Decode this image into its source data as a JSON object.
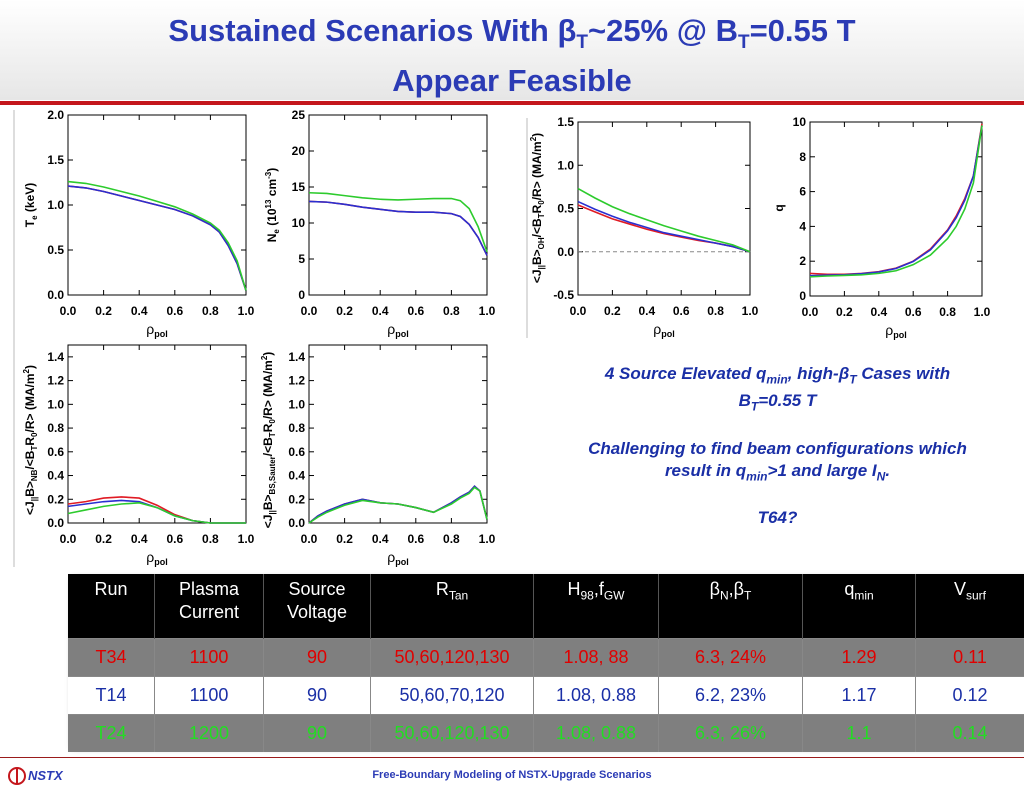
{
  "header": {
    "title_line1_a": "Sustained Scenarios With ",
    "beta": "β",
    "sub_T1": "T",
    "title_line1_b": "~25% @ B",
    "sub_T2": "T",
    "title_line1_c": "=0.55 T",
    "title_line2": "Appear Feasible"
  },
  "colors": {
    "red": "#e01b24",
    "blue": "#2a2fd0",
    "green": "#2dcb2d",
    "title": "#2b3bb5"
  },
  "chart_data": [
    {
      "type": "line",
      "id": "te",
      "ylabel": "T_e (keV)",
      "xlabel": "ρ_pol",
      "xlim": [
        0,
        1
      ],
      "ylim": [
        0,
        2
      ],
      "xticks": [
        "0.0",
        "0.2",
        "0.4",
        "0.6",
        "0.8",
        "1.0"
      ],
      "yticks": [
        "0.0",
        "0.5",
        "1.0",
        "1.5",
        "2.0"
      ],
      "x": [
        0,
        0.1,
        0.2,
        0.3,
        0.4,
        0.5,
        0.6,
        0.7,
        0.8,
        0.85,
        0.9,
        0.95,
        1.0
      ],
      "series": [
        {
          "color": "red",
          "values": [
            1.21,
            1.19,
            1.15,
            1.1,
            1.05,
            1.0,
            0.95,
            0.88,
            0.78,
            0.7,
            0.55,
            0.35,
            0.05
          ]
        },
        {
          "color": "blue",
          "values": [
            1.21,
            1.19,
            1.15,
            1.1,
            1.05,
            1.0,
            0.95,
            0.88,
            0.78,
            0.7,
            0.55,
            0.35,
            0.05
          ]
        },
        {
          "color": "green",
          "values": [
            1.26,
            1.24,
            1.2,
            1.15,
            1.1,
            1.04,
            0.98,
            0.9,
            0.8,
            0.72,
            0.58,
            0.38,
            0.05
          ]
        }
      ]
    },
    {
      "type": "line",
      "id": "ne",
      "ylabel": "N_e (10^13 cm^-3)",
      "xlabel": "ρ_pol",
      "xlim": [
        0,
        1
      ],
      "ylim": [
        0,
        25
      ],
      "xticks": [
        "0.0",
        "0.2",
        "0.4",
        "0.6",
        "0.8",
        "1.0"
      ],
      "yticks": [
        "0",
        "5",
        "10",
        "15",
        "20",
        "25"
      ],
      "x": [
        0,
        0.1,
        0.2,
        0.3,
        0.4,
        0.5,
        0.6,
        0.7,
        0.8,
        0.85,
        0.9,
        0.95,
        1.0
      ],
      "series": [
        {
          "color": "red",
          "values": [
            13.0,
            12.9,
            12.6,
            12.2,
            11.9,
            11.6,
            11.5,
            11.5,
            11.3,
            10.9,
            9.8,
            8.0,
            5.5
          ]
        },
        {
          "color": "blue",
          "values": [
            13.0,
            12.9,
            12.6,
            12.2,
            11.9,
            11.6,
            11.5,
            11.5,
            11.3,
            10.9,
            9.8,
            8.0,
            5.5
          ]
        },
        {
          "color": "green",
          "values": [
            14.2,
            14.1,
            13.8,
            13.5,
            13.3,
            13.2,
            13.3,
            13.4,
            13.4,
            13.1,
            12.0,
            9.5,
            6.0
          ]
        }
      ]
    },
    {
      "type": "line",
      "id": "joh",
      "ylabel": "<J_||B>_OH/<B_T R_0/R> (MA/m^2)",
      "xlabel": "ρ_pol",
      "xlim": [
        0,
        1
      ],
      "ylim": [
        -0.5,
        1.5
      ],
      "xticks": [
        "0.0",
        "0.2",
        "0.4",
        "0.6",
        "0.8",
        "1.0"
      ],
      "yticks": [
        "-0.5",
        "0.0",
        "0.5",
        "1.0",
        "1.5"
      ],
      "zero_line": true,
      "x": [
        0,
        0.1,
        0.2,
        0.3,
        0.4,
        0.5,
        0.6,
        0.7,
        0.8,
        0.9,
        1.0
      ],
      "series": [
        {
          "color": "red",
          "values": [
            0.54,
            0.46,
            0.38,
            0.32,
            0.26,
            0.21,
            0.17,
            0.13,
            0.1,
            0.06,
            0.0
          ]
        },
        {
          "color": "blue",
          "values": [
            0.58,
            0.49,
            0.41,
            0.34,
            0.28,
            0.22,
            0.18,
            0.14,
            0.1,
            0.06,
            0.0
          ]
        },
        {
          "color": "green",
          "values": [
            0.73,
            0.62,
            0.52,
            0.44,
            0.37,
            0.3,
            0.24,
            0.18,
            0.13,
            0.08,
            0.0
          ]
        }
      ]
    },
    {
      "type": "line",
      "id": "q",
      "ylabel": "q",
      "xlabel": "ρ_pol",
      "xlim": [
        0,
        1
      ],
      "ylim": [
        0,
        10
      ],
      "xticks": [
        "0.0",
        "0.2",
        "0.4",
        "0.6",
        "0.8",
        "1.0"
      ],
      "yticks": [
        "0",
        "2",
        "4",
        "6",
        "8",
        "10"
      ],
      "x": [
        0,
        0.1,
        0.2,
        0.3,
        0.4,
        0.5,
        0.6,
        0.7,
        0.8,
        0.85,
        0.9,
        0.95,
        1.0
      ],
      "series": [
        {
          "color": "red",
          "values": [
            1.3,
            1.25,
            1.25,
            1.3,
            1.4,
            1.6,
            2.0,
            2.7,
            3.8,
            4.6,
            5.6,
            6.9,
            9.9
          ]
        },
        {
          "color": "blue",
          "values": [
            1.17,
            1.2,
            1.22,
            1.28,
            1.38,
            1.58,
            1.98,
            2.65,
            3.75,
            4.5,
            5.5,
            6.9,
            9.8
          ]
        },
        {
          "color": "green",
          "values": [
            1.1,
            1.15,
            1.18,
            1.22,
            1.3,
            1.45,
            1.8,
            2.35,
            3.3,
            4.0,
            5.0,
            6.5,
            9.8
          ]
        }
      ]
    },
    {
      "type": "line",
      "id": "jnb",
      "ylabel": "<J_||B>_NB/<B_T R_0/R> (MA/m^2)",
      "xlabel": "ρ_pol",
      "xlim": [
        0,
        1
      ],
      "ylim": [
        0,
        1.5
      ],
      "xticks": [
        "0.0",
        "0.2",
        "0.4",
        "0.6",
        "0.8",
        "1.0"
      ],
      "yticks": [
        "0.0",
        "0.2",
        "0.4",
        "0.6",
        "0.8",
        "1.0",
        "1.2",
        "1.4"
      ],
      "x": [
        0,
        0.1,
        0.2,
        0.3,
        0.4,
        0.5,
        0.6,
        0.7,
        0.8,
        0.9,
        1.0
      ],
      "series": [
        {
          "color": "red",
          "values": [
            0.16,
            0.18,
            0.21,
            0.22,
            0.21,
            0.15,
            0.07,
            0.02,
            0.0,
            0.0,
            0.0
          ]
        },
        {
          "color": "blue",
          "values": [
            0.14,
            0.16,
            0.18,
            0.19,
            0.18,
            0.13,
            0.06,
            0.02,
            0.0,
            0.0,
            0.0
          ]
        },
        {
          "color": "green",
          "values": [
            0.08,
            0.11,
            0.14,
            0.16,
            0.17,
            0.13,
            0.06,
            0.02,
            0.0,
            0.0,
            0.0
          ]
        }
      ]
    },
    {
      "type": "line",
      "id": "jbs",
      "ylabel": "<J_||B>_BS,Sauter/<B_T R_0/R> (MA/m^2)",
      "xlabel": "ρ_pol",
      "xlim": [
        0,
        1
      ],
      "ylim": [
        0,
        1.5
      ],
      "xticks": [
        "0.0",
        "0.2",
        "0.4",
        "0.6",
        "0.8",
        "1.0"
      ],
      "yticks": [
        "0.0",
        "0.2",
        "0.4",
        "0.6",
        "0.8",
        "1.0",
        "1.2",
        "1.4"
      ],
      "x": [
        0,
        0.05,
        0.1,
        0.2,
        0.3,
        0.4,
        0.5,
        0.6,
        0.7,
        0.8,
        0.85,
        0.9,
        0.93,
        0.96,
        1.0
      ],
      "series": [
        {
          "color": "red",
          "values": [
            0.0,
            0.06,
            0.1,
            0.16,
            0.2,
            0.17,
            0.16,
            0.13,
            0.09,
            0.17,
            0.22,
            0.26,
            0.31,
            0.27,
            0.03
          ]
        },
        {
          "color": "blue",
          "values": [
            0.0,
            0.06,
            0.1,
            0.16,
            0.2,
            0.17,
            0.16,
            0.13,
            0.09,
            0.17,
            0.22,
            0.26,
            0.31,
            0.27,
            0.03
          ]
        },
        {
          "color": "green",
          "values": [
            0.0,
            0.05,
            0.09,
            0.15,
            0.19,
            0.17,
            0.16,
            0.13,
            0.09,
            0.16,
            0.21,
            0.25,
            0.3,
            0.27,
            0.03
          ]
        }
      ]
    }
  ],
  "caption": {
    "line1_a": "4 Source Elevated q",
    "line1_min": "min",
    "line1_b": ", high-",
    "line1_beta": "β",
    "line1_T": "T",
    "line1_c": " Cases with",
    "line2_a": "B",
    "line2_T": "T",
    "line2_b": "=0.55 T",
    "line3": "Challenging to find beam configurations which",
    "line4_a": "result in q",
    "line4_min": "min",
    "line4_b": ">1 and large I",
    "line4_N": "N",
    "line4_c": ".",
    "line5": "T64?"
  },
  "table": {
    "headers": {
      "run": "Run",
      "plasma1": "Plasma",
      "plasma2": "Current",
      "source1": "Source",
      "source2": "Voltage",
      "rtan": "R",
      "rtan_sub": "Tan",
      "h98": "H",
      "h98_sub": "98",
      "fgw_sep": ",f",
      "fgw_sub": "GW",
      "beta1": "β",
      "beta_n": "N",
      "beta_sep": ",β",
      "beta_t": "T",
      "qmin": "q",
      "qmin_sub": "min",
      "vsurf": "V",
      "vsurf_sub": "surf"
    },
    "rows": [
      {
        "run": "T34",
        "current": "1100",
        "voltage": "90",
        "rtan": "50,60,120,130",
        "h98fgw": "1.08, 88",
        "beta": "6.3, 24%",
        "qmin": "1.29",
        "vsurf": "0.11"
      },
      {
        "run": "T14",
        "current": "1100",
        "voltage": "90",
        "rtan": "50,60,70,120",
        "h98fgw": "1.08, 0.88",
        "beta": "6.2, 23%",
        "qmin": "1.17",
        "vsurf": "0.12"
      },
      {
        "run": "T24",
        "current": "1200",
        "voltage": "90",
        "rtan": "50,60,120,130",
        "h98fgw": "1.08, 0.88",
        "beta": "6.3, 26%",
        "qmin": "1.1",
        "vsurf": "0.14"
      }
    ]
  },
  "footer": {
    "logo_text": "NSTX",
    "center": "Free-Boundary Modeling of NSTX-Upgrade Scenarios"
  }
}
